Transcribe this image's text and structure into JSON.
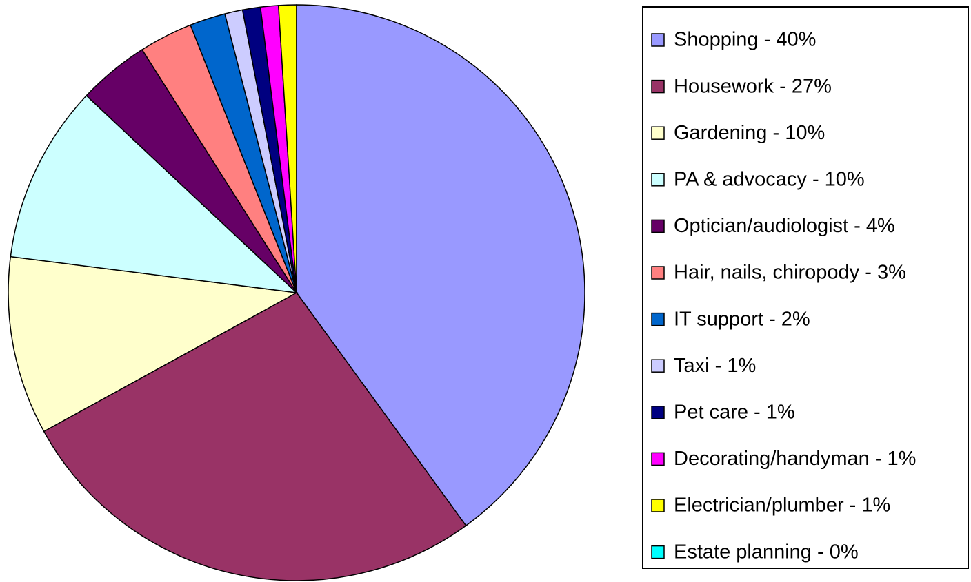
{
  "chart_data": {
    "type": "pie",
    "categories": [
      "Shopping - 40%",
      "Housework - 27%",
      "Gardening - 10%",
      "PA & advocacy - 10%",
      "Optician/audiologist - 4%",
      "Hair, nails, chiropody - 3%",
      "IT support - 2%",
      "Taxi - 1%",
      "Pet care - 1%",
      "Decorating/handyman - 1%",
      "Electrician/plumber - 1%",
      "Estate planning - 0%"
    ],
    "values": [
      40,
      27,
      10,
      10,
      4,
      3,
      2,
      1,
      1,
      1,
      1,
      0
    ],
    "colors": [
      "#9999ff",
      "#993366",
      "#ffffcc",
      "#ccffff",
      "#660066",
      "#ff8080",
      "#0066cc",
      "#ccccff",
      "#000080",
      "#ff00ff",
      "#ffff00",
      "#00ffff"
    ],
    "legend": "right"
  }
}
